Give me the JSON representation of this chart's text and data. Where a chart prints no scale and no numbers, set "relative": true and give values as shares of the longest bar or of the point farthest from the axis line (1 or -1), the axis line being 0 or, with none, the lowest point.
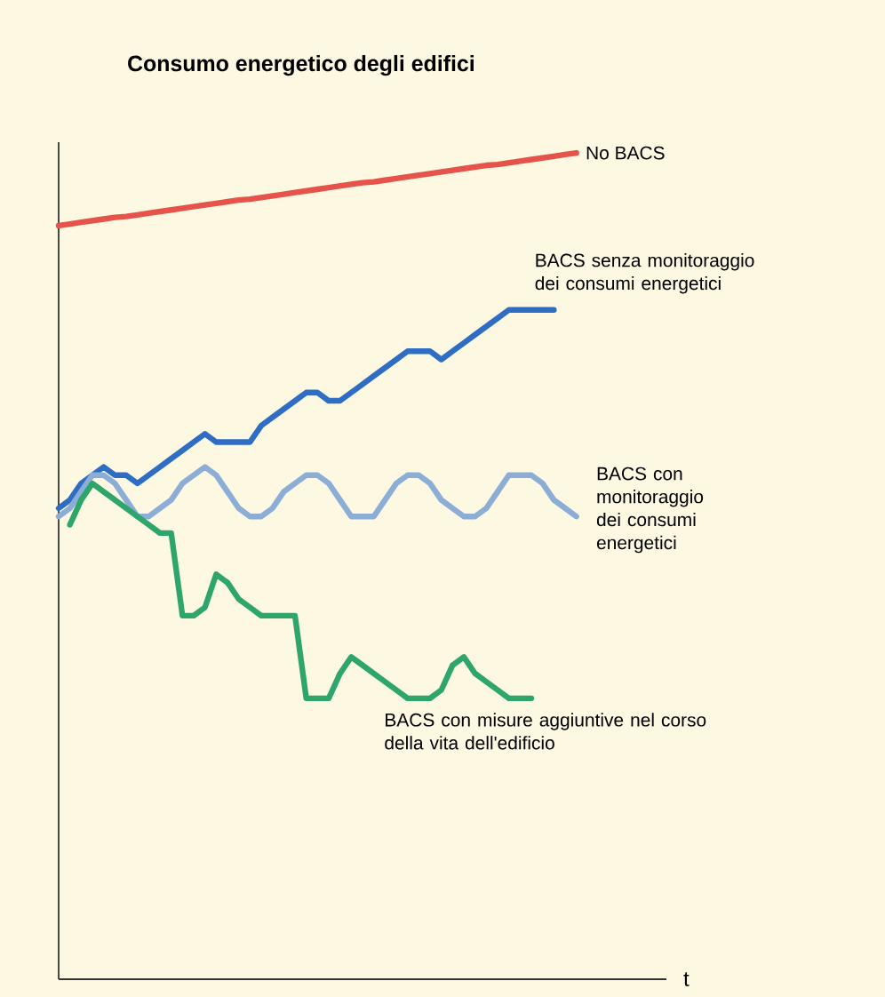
{
  "chart_data": {
    "type": "line",
    "title": "Consumo energetico degli edifici",
    "xlabel": "t",
    "relative": true,
    "categories": [
      null,
      null,
      null,
      null,
      null,
      null,
      null,
      null,
      null,
      null,
      null,
      null,
      null,
      null,
      null,
      null,
      null,
      null,
      null,
      null,
      null,
      null,
      null,
      null,
      null,
      null,
      null,
      null,
      null,
      null,
      null,
      null,
      null,
      null,
      null,
      null,
      null,
      null,
      null,
      null,
      null,
      null,
      null,
      null,
      null,
      null,
      null,
      null,
      null,
      null,
      null,
      null,
      null,
      null,
      null
    ],
    "series": [
      {
        "name": "No BACS",
        "color": "#e5534b",
        "values": [
          0.912,
          0.914,
          0.916,
          0.918,
          0.92,
          0.922,
          0.923,
          0.925,
          0.927,
          0.929,
          0.931,
          0.933,
          0.935,
          0.937,
          0.939,
          0.941,
          0.943,
          0.944,
          0.946,
          0.948,
          0.95,
          0.952,
          0.954,
          0.956,
          0.958,
          0.96,
          0.962,
          0.964,
          0.965,
          0.967,
          0.969,
          0.971,
          0.973,
          0.975,
          0.977,
          0.979,
          0.981,
          0.983,
          0.985,
          0.986,
          0.988,
          0.99,
          0.992,
          0.994,
          0.996,
          0.998,
          1.0,
          null,
          null,
          null,
          null,
          null,
          null,
          null,
          null
        ]
      },
      {
        "name": "BACS senza monitoraggio dei consumi energetici",
        "color": "#2f6cc4",
        "values": [
          0.57,
          0.58,
          0.6,
          0.61,
          0.62,
          0.61,
          0.61,
          0.6,
          0.61,
          0.62,
          0.63,
          0.64,
          0.65,
          0.66,
          0.65,
          0.65,
          0.65,
          0.65,
          0.67,
          0.68,
          0.69,
          0.7,
          0.71,
          0.71,
          0.7,
          0.7,
          0.71,
          0.72,
          0.73,
          0.74,
          0.75,
          0.76,
          0.76,
          0.76,
          0.75,
          0.76,
          0.77,
          0.78,
          0.79,
          0.8,
          0.81,
          0.81,
          0.81,
          0.81,
          0.81,
          null,
          null,
          null,
          null,
          null,
          null,
          null,
          null,
          null,
          null
        ]
      },
      {
        "name": "BACS con monitoraggio dei consumi energetici",
        "color": "#8cadd6",
        "values": [
          0.56,
          0.57,
          0.59,
          0.61,
          0.61,
          0.6,
          0.58,
          0.56,
          0.56,
          0.57,
          0.58,
          0.6,
          0.61,
          0.62,
          0.61,
          0.59,
          0.57,
          0.56,
          0.56,
          0.57,
          0.59,
          0.6,
          0.61,
          0.61,
          0.6,
          0.58,
          0.56,
          0.56,
          0.56,
          0.58,
          0.6,
          0.61,
          0.61,
          0.6,
          0.58,
          0.57,
          0.56,
          0.56,
          0.57,
          0.59,
          0.61,
          0.61,
          0.61,
          0.6,
          0.58,
          0.57,
          0.56,
          null,
          null,
          null,
          null,
          null,
          null,
          null,
          null
        ]
      },
      {
        "name": "BACS con misure aggiuntive nel corso della vita dell'edificio",
        "color": "#2ea56b",
        "values": [
          null,
          0.55,
          0.58,
          0.6,
          0.59,
          0.58,
          0.57,
          0.56,
          0.55,
          0.54,
          0.54,
          0.44,
          0.44,
          0.45,
          0.49,
          0.48,
          0.46,
          0.45,
          0.44,
          0.44,
          0.44,
          0.44,
          0.34,
          0.34,
          0.34,
          0.37,
          0.39,
          0.38,
          0.37,
          0.36,
          0.35,
          0.34,
          0.34,
          0.34,
          0.35,
          0.38,
          0.39,
          0.37,
          0.36,
          0.35,
          0.34,
          0.34,
          0.34,
          null,
          null,
          null,
          null,
          null,
          null,
          null,
          null,
          null,
          null,
          null,
          null
        ]
      }
    ]
  }
}
